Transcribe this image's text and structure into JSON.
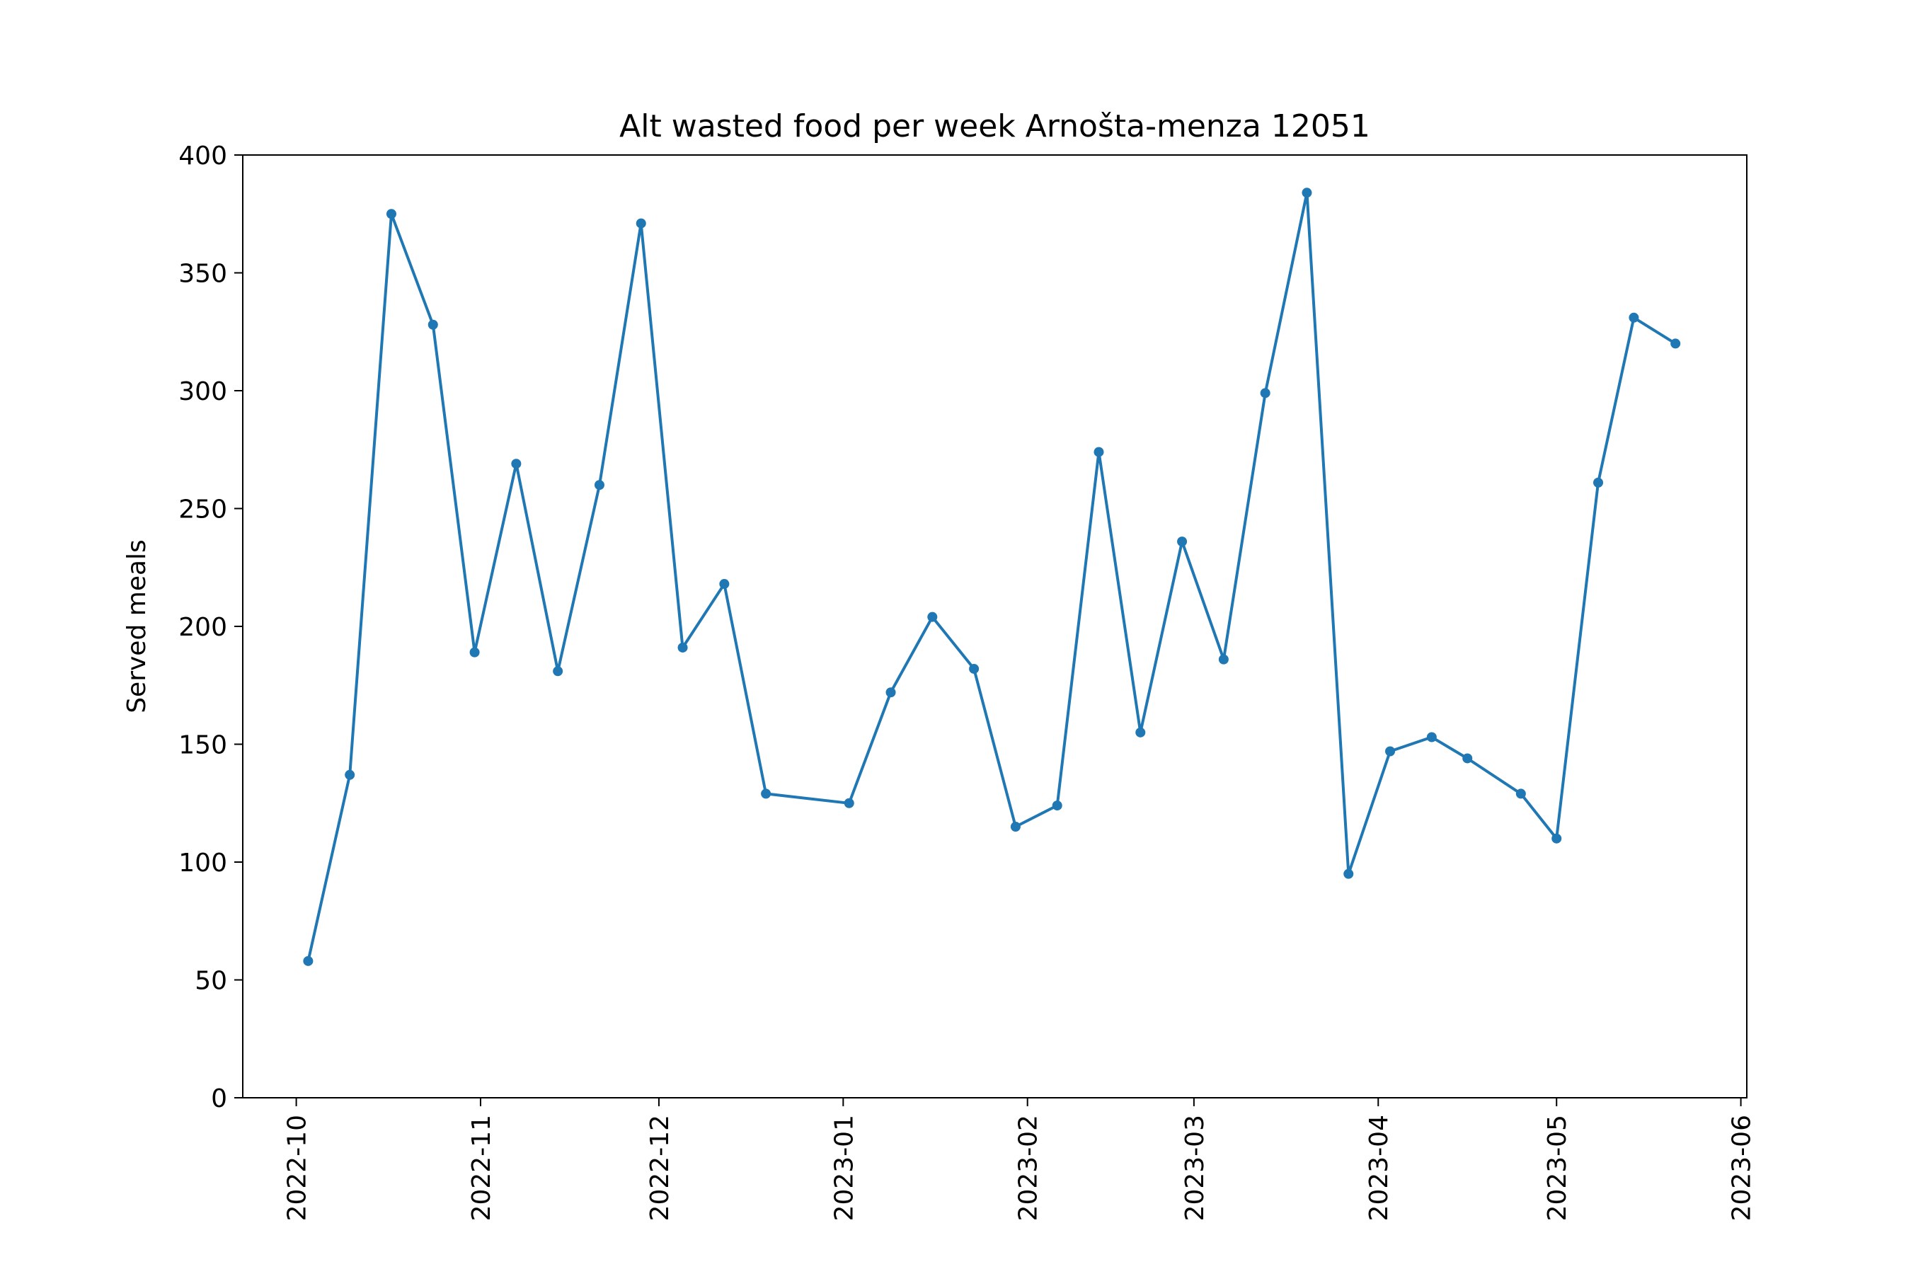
{
  "chart_data": {
    "type": "line",
    "title": "Alt wasted food per week Arnošta-menza 12051",
    "xlabel": "",
    "ylabel": "Served meals",
    "ylim": [
      0,
      400
    ],
    "yticks": [
      0,
      50,
      100,
      150,
      200,
      250,
      300,
      350,
      400
    ],
    "xlim": [
      "2022-09-22",
      "2023-06-02"
    ],
    "xticks": [
      "2022-10-01",
      "2022-11-01",
      "2022-12-01",
      "2023-01-01",
      "2023-02-01",
      "2023-03-01",
      "2023-04-01",
      "2023-05-01",
      "2023-06-01"
    ],
    "xtick_labels": [
      "2022-10",
      "2022-11",
      "2022-12",
      "2023-01",
      "2023-02",
      "2023-03",
      "2023-04",
      "2023-05",
      "2023-06"
    ],
    "grid": false,
    "color": "#1f77b4",
    "series": [
      {
        "x": [
          "2022-10-03",
          "2022-10-10",
          "2022-10-17",
          "2022-10-24",
          "2022-10-31",
          "2022-11-07",
          "2022-11-14",
          "2022-11-21",
          "2022-11-28",
          "2022-12-05",
          "2022-12-12",
          "2022-12-19",
          "2023-01-02",
          "2023-01-09",
          "2023-01-16",
          "2023-01-23",
          "2023-01-30",
          "2023-02-06",
          "2023-02-13",
          "2023-02-20",
          "2023-02-27",
          "2023-03-06",
          "2023-03-13",
          "2023-03-20",
          "2023-03-27",
          "2023-04-03",
          "2023-04-10",
          "2023-04-16",
          "2023-04-25",
          "2023-05-01",
          "2023-05-08",
          "2023-05-14",
          "2023-05-21"
        ],
        "values": [
          58,
          137,
          375,
          328,
          189,
          269,
          181,
          260,
          371,
          191,
          218,
          129,
          125,
          172,
          204,
          182,
          115,
          124,
          274,
          155,
          236,
          186,
          299,
          384,
          95,
          147,
          153,
          144,
          129,
          110,
          261,
          331,
          320
        ]
      }
    ]
  }
}
